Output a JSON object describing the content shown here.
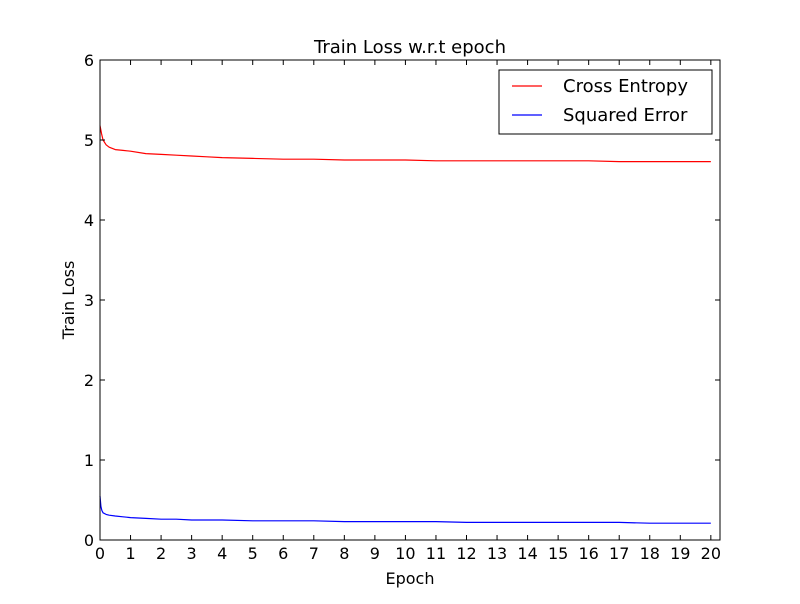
{
  "chart_data": {
    "type": "line",
    "title": "Train Loss w.r.t epoch",
    "xlabel": "Epoch",
    "ylabel": "Train Loss",
    "xlim": [
      0,
      20.3
    ],
    "ylim": [
      0,
      6
    ],
    "x_ticks": [
      "0",
      "1",
      "2",
      "3",
      "4",
      "5",
      "6",
      "7",
      "8",
      "9",
      "10",
      "11",
      "12",
      "13",
      "14",
      "15",
      "16",
      "17",
      "18",
      "19",
      "20"
    ],
    "y_ticks": [
      "0",
      "1",
      "2",
      "3",
      "4",
      "5",
      "6"
    ],
    "grid": false,
    "legend_position": "top-right",
    "series": [
      {
        "name": "Cross Entropy",
        "color": "#ff0000",
        "x": [
          0,
          0.05,
          0.1,
          0.2,
          0.3,
          0.5,
          0.75,
          1,
          1.5,
          2,
          2.5,
          3,
          3.5,
          4,
          5,
          6,
          7,
          8,
          9,
          10,
          11,
          12,
          13,
          14,
          15,
          16,
          17,
          18,
          19,
          20
        ],
        "values": [
          5.18,
          5.08,
          5.0,
          4.94,
          4.91,
          4.88,
          4.87,
          4.86,
          4.83,
          4.82,
          4.81,
          4.8,
          4.79,
          4.78,
          4.77,
          4.76,
          4.76,
          4.75,
          4.75,
          4.75,
          4.74,
          4.74,
          4.74,
          4.74,
          4.74,
          4.74,
          4.73,
          4.73,
          4.73,
          4.73
        ]
      },
      {
        "name": "Squared Error",
        "color": "#0000ff",
        "x": [
          0,
          0.03,
          0.06,
          0.1,
          0.2,
          0.3,
          0.5,
          0.75,
          1,
          1.5,
          2,
          2.5,
          3,
          3.5,
          4,
          5,
          6,
          7,
          8,
          9,
          10,
          11,
          12,
          13,
          14,
          15,
          16,
          17,
          18,
          19,
          20
        ],
        "values": [
          0.55,
          0.42,
          0.37,
          0.34,
          0.32,
          0.31,
          0.3,
          0.29,
          0.28,
          0.27,
          0.26,
          0.26,
          0.25,
          0.25,
          0.25,
          0.24,
          0.24,
          0.24,
          0.23,
          0.23,
          0.23,
          0.23,
          0.22,
          0.22,
          0.22,
          0.22,
          0.22,
          0.22,
          0.21,
          0.21,
          0.21
        ]
      }
    ]
  }
}
